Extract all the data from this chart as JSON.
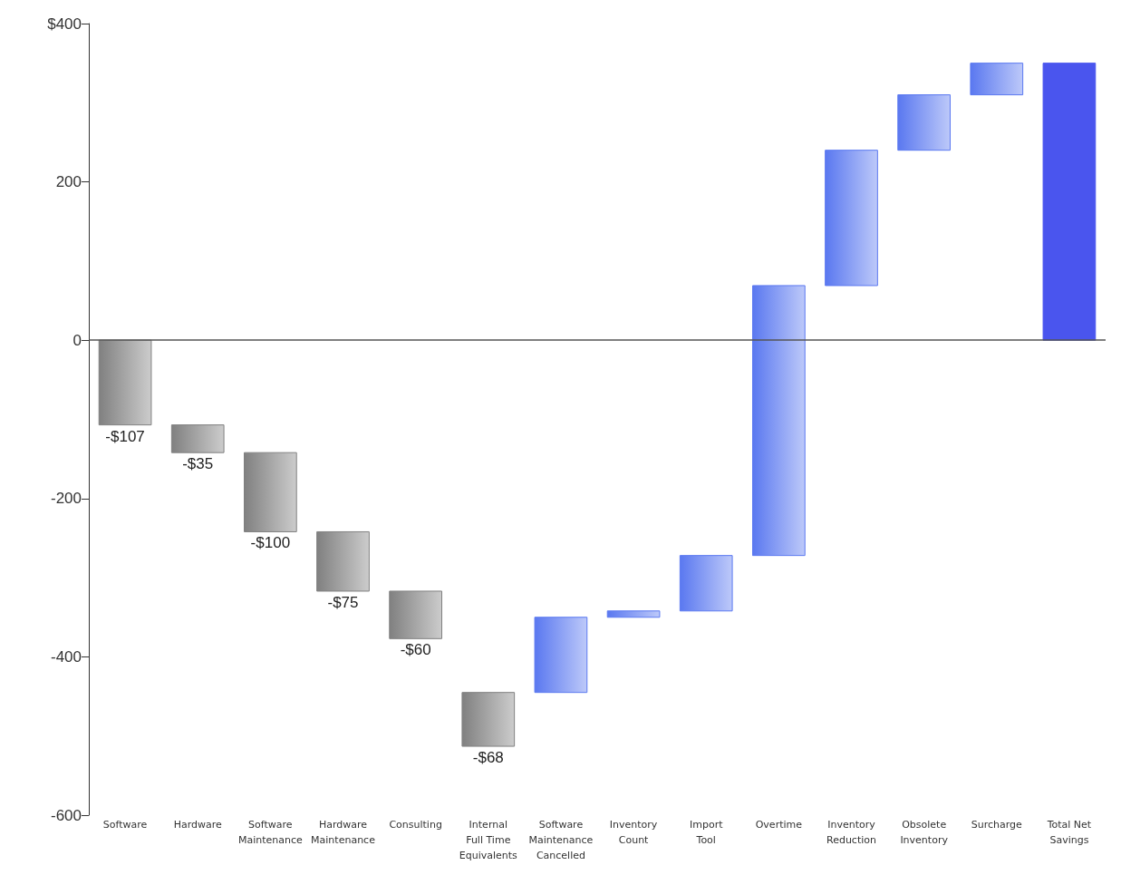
{
  "chart_data": {
    "type": "bar",
    "categories": [
      "Software",
      "Hardware",
      "Software\nMaintenance",
      "Hardware\nMaintenance",
      "Consulting",
      "Internal\nFull Time\nEquivalents",
      "Software\nMaintenance\nCancelled",
      "Inventory\nCount",
      "Import\nTool",
      "Overtime",
      "Inventory\nReduction",
      "Obsolete\nInventory",
      "Surcharge",
      "Total Net\nSavings"
    ],
    "base": [
      0,
      -107,
      -142,
      -242,
      -317,
      -445,
      -445,
      -350,
      -342,
      -272,
      69,
      240,
      310,
      0
    ],
    "values": [
      -107,
      -35,
      -100,
      -75,
      -60,
      -68,
      95,
      8,
      70,
      341,
      171,
      70,
      40,
      350
    ],
    "value_labels": [
      "-$107",
      "-$35",
      "-$100",
      "-$75",
      "-$60",
      "-$68",
      null,
      null,
      null,
      null,
      null,
      null,
      null,
      null
    ],
    "colors": [
      "#808080",
      "#808080",
      "#808080",
      "#808080",
      "#808080",
      "#808080",
      "#5a78f0",
      "#5a78f0",
      "#5a78f0",
      "#5a78f0",
      "#5a78f0",
      "#5a78f0",
      "#5a78f0",
      "#4a55ee"
    ],
    "ylim": [
      -600,
      400
    ],
    "yticks": [
      {
        "value": -600,
        "label": "-600"
      },
      {
        "value": -400,
        "label": "-400"
      },
      {
        "value": -200,
        "label": "-200"
      },
      {
        "value": 0,
        "label": "0"
      },
      {
        "value": 200,
        "label": "200"
      },
      {
        "value": 400,
        "label": "$400"
      }
    ],
    "ref_lines": [
      {
        "axis": "y",
        "value": 0,
        "color": "#555555"
      }
    ],
    "grid": false
  }
}
